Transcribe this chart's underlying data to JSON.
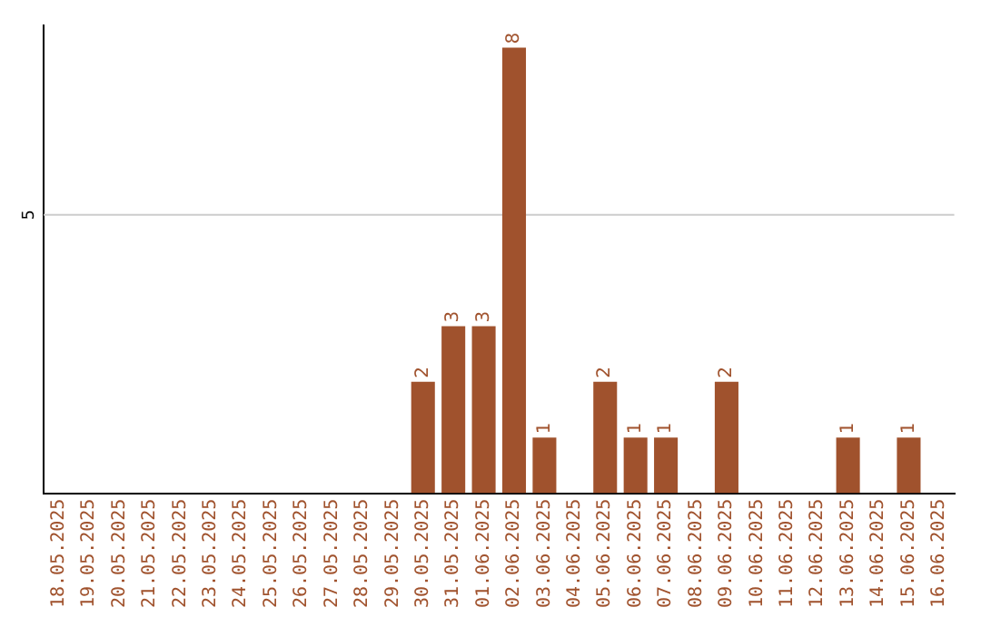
{
  "chart_data": {
    "type": "bar",
    "ylim": [
      0,
      8.4
    ],
    "categories": [
      "18.05.2025",
      "19.05.2025",
      "20.05.2025",
      "21.05.2025",
      "22.05.2025",
      "23.05.2025",
      "24.05.2025",
      "25.05.2025",
      "26.05.2025",
      "27.05.2025",
      "28.05.2025",
      "29.05.2025",
      "30.05.2025",
      "31.05.2025",
      "01.06.2025",
      "02.06.2025",
      "03.06.2025",
      "04.06.2025",
      "05.06.2025",
      "06.06.2025",
      "07.06.2025",
      "08.06.2025",
      "09.06.2025",
      "10.06.2025",
      "11.06.2025",
      "12.06.2025",
      "13.06.2025",
      "14.06.2025",
      "15.06.2025",
      "16.06.2025"
    ],
    "values": [
      null,
      null,
      null,
      null,
      null,
      null,
      null,
      null,
      null,
      null,
      null,
      null,
      2,
      3,
      3,
      8,
      1,
      null,
      2,
      1,
      1,
      null,
      2,
      null,
      null,
      null,
      1,
      null,
      1,
      null
    ],
    "data_labels": true,
    "color": "#a0522d",
    "ref_lines": [
      {
        "axis": "y",
        "value": 5,
        "label": "5",
        "color": "#cccccc"
      }
    ],
    "legend": false
  }
}
